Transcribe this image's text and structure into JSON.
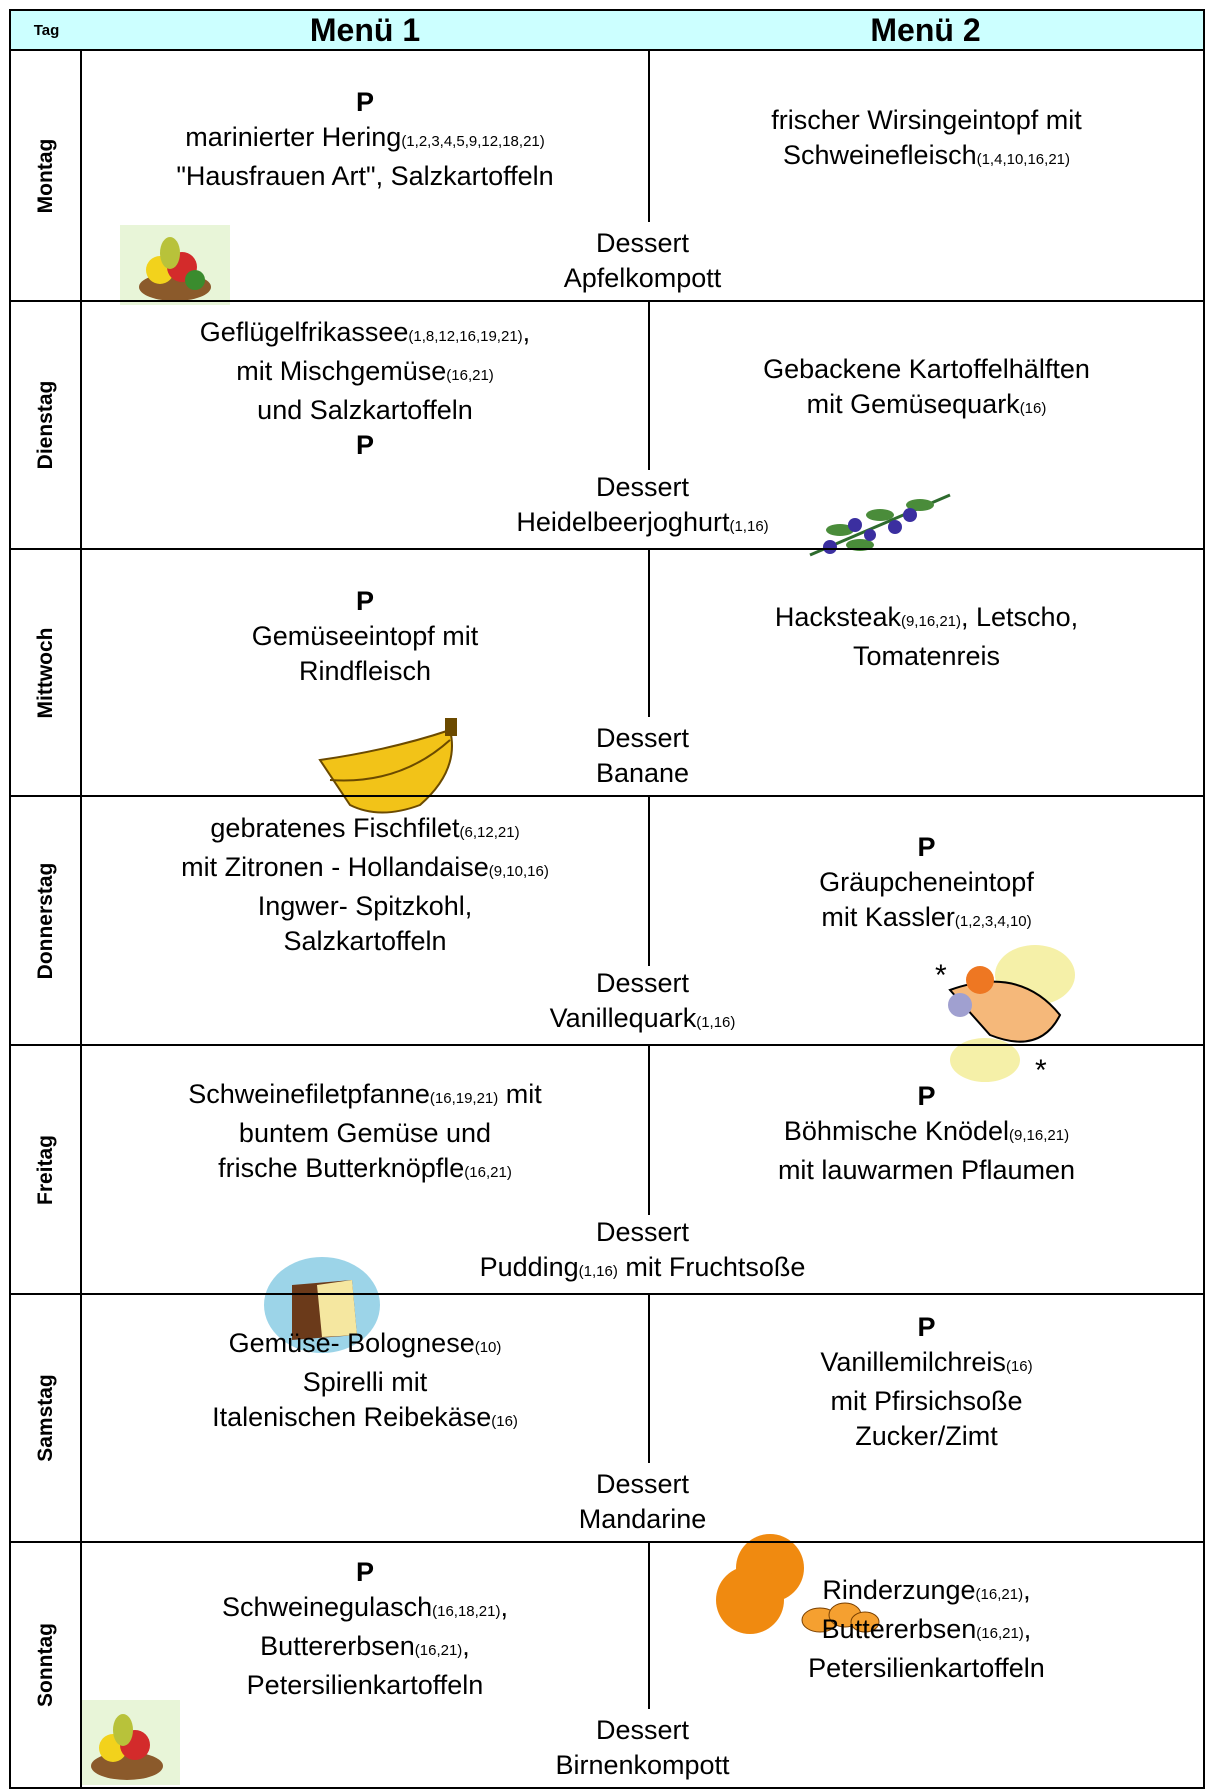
{
  "header": {
    "tag": "Tag",
    "menu1": "Menü 1",
    "menu2": "Menü 2"
  },
  "days": [
    {
      "day": "Montag",
      "menu1": {
        "p": "P",
        "lines": [
          [
            {
              "text": "marinierter Hering"
            },
            {
              "sub": "(1,2,3,4,5,9,12,18,21)"
            }
          ],
          [
            {
              "text": "\"Hausfrauen Art\", Salzkartoffeln"
            }
          ]
        ]
      },
      "menu2": {
        "lines": [
          [
            {
              "text": "frischer Wirsingeintopf mit"
            }
          ],
          [
            {
              "text": "Schweinefleisch"
            },
            {
              "sub": "(1,4,10,16,21)"
            }
          ]
        ]
      },
      "dessert": [
        [
          {
            "text": "Dessert"
          }
        ],
        [
          {
            "text": "Apfelkompott"
          }
        ]
      ]
    },
    {
      "day": "Dienstag",
      "menu1": {
        "lines": [
          [
            {
              "text": "Geflügelfrikassee"
            },
            {
              "sub": "(1,8,12,16,19,21)"
            },
            {
              "text": ","
            }
          ],
          [
            {
              "text": "mit Mischgemüse"
            },
            {
              "sub": "(16,21)"
            }
          ],
          [
            {
              "text": "und Salzkartoffeln"
            }
          ]
        ],
        "p_after": "P"
      },
      "menu2": {
        "lines": [
          [
            {
              "text": "Gebackene Kartoffelhälften"
            }
          ],
          [
            {
              "text": "mit Gemüsequark"
            },
            {
              "sub": "(16)"
            }
          ]
        ]
      },
      "dessert": [
        [
          {
            "text": "Dessert"
          }
        ],
        [
          {
            "text": "Heidelbeerjoghurt"
          },
          {
            "sub": "(1,16)"
          }
        ]
      ]
    },
    {
      "day": "Mittwoch",
      "menu1": {
        "p": "P",
        "lines": [
          [
            {
              "text": "Gemüseeintopf mit"
            }
          ],
          [
            {
              "text": "Rindfleisch"
            }
          ]
        ]
      },
      "menu2": {
        "lines": [
          [
            {
              "text": "Hacksteak"
            },
            {
              "sub": "(9,16,21)"
            },
            {
              "text": ", Letscho,"
            }
          ],
          [
            {
              "text": "Tomatenreis"
            }
          ]
        ]
      },
      "dessert": [
        [
          {
            "text": "Dessert"
          }
        ],
        [
          {
            "text": "Banane"
          }
        ]
      ]
    },
    {
      "day": "Donnerstag",
      "menu1": {
        "lines": [
          [
            {
              "text": "gebratenes Fischfilet"
            },
            {
              "sub": "(6,12,21)"
            }
          ],
          [
            {
              "text": "mit Zitronen - Hollandaise"
            },
            {
              "sub": "(9,10,16)"
            }
          ],
          [
            {
              "text": "Ingwer- Spitzkohl,"
            }
          ],
          [
            {
              "text": "Salzkartoffeln"
            }
          ]
        ]
      },
      "menu2": {
        "p": "P",
        "lines": [
          [
            {
              "text": "Gräupcheneintopf"
            }
          ],
          [
            {
              "text": "mit Kassler"
            },
            {
              "sub": "(1,2,3,4,10)"
            }
          ]
        ]
      },
      "dessert": [
        [
          {
            "text": "Dessert"
          }
        ],
        [
          {
            "text": "Vanillequark"
          },
          {
            "sub": "(1,16)"
          }
        ]
      ]
    },
    {
      "day": "Freitag",
      "menu1": {
        "lines": [
          [
            {
              "text": "Schweinefiletpfanne"
            },
            {
              "sub": "(16,19,21)"
            },
            {
              "text": " mit"
            }
          ],
          [
            {
              "text": "buntem Gemüse und"
            }
          ],
          [
            {
              "text": "frische Butterknöpfle"
            },
            {
              "sub": "(16,21)"
            }
          ]
        ]
      },
      "menu2": {
        "p": "P",
        "lines": [
          [
            {
              "text": "Böhmische Knödel"
            },
            {
              "sub": "(9,16,21)"
            }
          ],
          [
            {
              "text": "mit lauwarmen Pflaumen"
            }
          ]
        ]
      },
      "dessert": [
        [
          {
            "text": "Dessert"
          }
        ],
        [
          {
            "text": "Pudding"
          },
          {
            "sub": "(1,16)"
          },
          {
            "text": " mit Fruchtsoße"
          }
        ]
      ]
    },
    {
      "day": "Samstag",
      "menu1": {
        "lines": [
          [
            {
              "text": "Gemüse- Bolognese"
            },
            {
              "sub": "(10)"
            }
          ],
          [
            {
              "text": "Spirelli mit"
            }
          ],
          [
            {
              "text": "Italenischen Reibekäse"
            },
            {
              "sub": "(16)"
            }
          ]
        ]
      },
      "menu2": {
        "p": "P",
        "lines": [
          [
            {
              "text": "Vanillemilchreis"
            },
            {
              "sub": "(16)"
            }
          ],
          [
            {
              "text": "mit Pfirsichsoße"
            }
          ],
          [
            {
              "text": "Zucker/Zimt"
            }
          ]
        ]
      },
      "dessert": [
        [
          {
            "text": "Dessert"
          }
        ],
        [
          {
            "text": "Mandarine"
          }
        ]
      ]
    },
    {
      "day": "Sonntag",
      "menu1": {
        "p": "P",
        "lines": [
          [
            {
              "text": "Schweinegulasch"
            },
            {
              "sub": "(16,18,21)"
            },
            {
              "text": ","
            }
          ],
          [
            {
              "text": "Buttererbsen"
            },
            {
              "sub": "(16,21)"
            },
            {
              "text": ","
            }
          ],
          [
            {
              "text": "Petersilienkartoffeln"
            }
          ]
        ]
      },
      "menu2": {
        "lines": [
          [
            {
              "text": "Rinderzunge"
            },
            {
              "sub": "(16,21)"
            },
            {
              "text": ","
            }
          ],
          [
            {
              "text": "Buttererbsen"
            },
            {
              "sub": "(16,21)"
            },
            {
              "text": ","
            }
          ],
          [
            {
              "text": "Petersilienkartoffeln"
            }
          ]
        ]
      },
      "dessert": [
        [
          {
            "text": "Dessert"
          }
        ],
        [
          {
            "text": "Birnenkompott"
          }
        ]
      ]
    }
  ]
}
